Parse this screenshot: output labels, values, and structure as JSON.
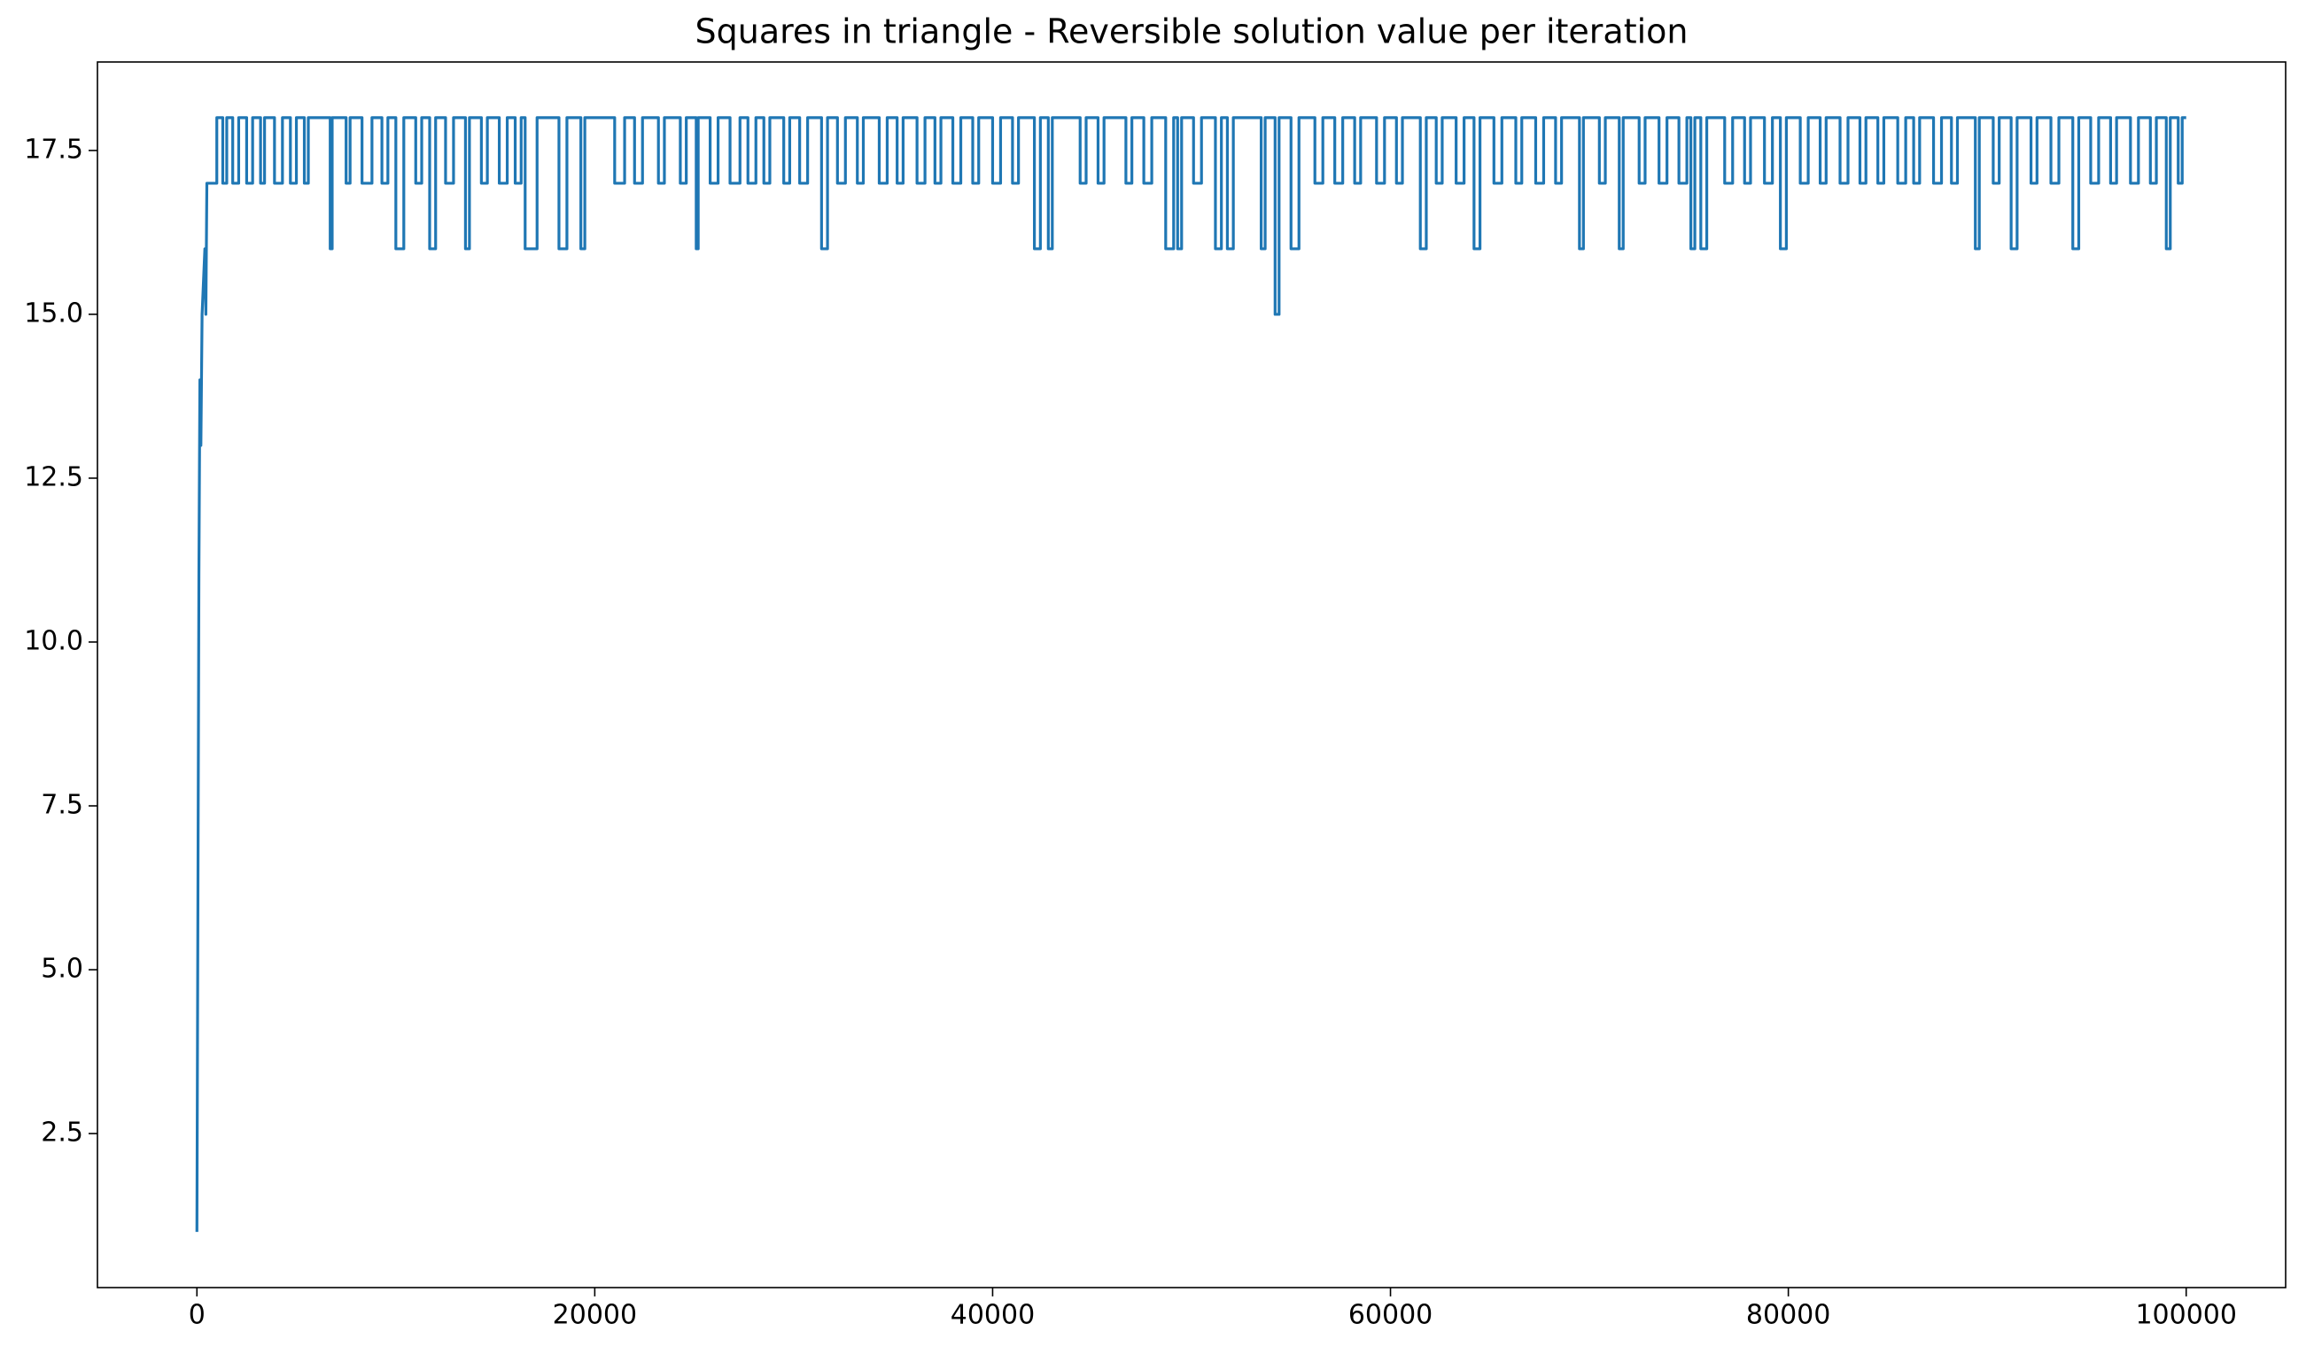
{
  "chart_data": {
    "type": "line",
    "title": "Squares in triangle - Reversible solution value per iteration",
    "color": "#1f77b4",
    "xlim": [
      -5000,
      105000
    ],
    "ylim": [
      0.15,
      18.85
    ],
    "xticks": [
      0,
      20000,
      40000,
      60000,
      80000,
      100000
    ],
    "yticks": [
      2.5,
      {
        "value": 5,
        "label": "5.0"
      },
      7.5,
      {
        "value": 10,
        "label": "10.0"
      },
      12.5,
      {
        "value": 15,
        "label": "15.0"
      },
      17.5
    ],
    "x": [
      0,
      60,
      100,
      150,
      200,
      260,
      400,
      450,
      500,
      1000,
      1000,
      1300,
      1300,
      1500,
      1500,
      1800,
      1800,
      2100,
      2100,
      2500,
      2500,
      2800,
      2800,
      3200,
      3200,
      3400,
      3400,
      3900,
      3900,
      4300,
      4300,
      4700,
      4700,
      5000,
      5000,
      5400,
      5400,
      5600,
      5600,
      6700,
      6700,
      6800,
      6800,
      7500,
      7500,
      7700,
      7700,
      8300,
      8300,
      8800,
      8800,
      9300,
      9300,
      9600,
      9600,
      10000,
      10000,
      10400,
      10400,
      11000,
      11000,
      11300,
      11300,
      11700,
      11700,
      12000,
      12000,
      12500,
      12500,
      12900,
      12900,
      13500,
      13500,
      13700,
      13700,
      14300,
      14300,
      14600,
      14600,
      15200,
      15200,
      15600,
      15600,
      16000,
      16000,
      16300,
      16300,
      16500,
      16500,
      17100,
      17100,
      18200,
      18200,
      18600,
      18600,
      19300,
      19300,
      19500,
      19500,
      21000,
      21000,
      21500,
      21500,
      22000,
      22000,
      22400,
      22400,
      23200,
      23200,
      23500,
      23500,
      24300,
      24300,
      24600,
      24600,
      25100,
      25100,
      25200,
      25200,
      25800,
      25800,
      26200,
      26200,
      26800,
      26800,
      27300,
      27300,
      27700,
      27700,
      28100,
      28100,
      28500,
      28500,
      28800,
      28800,
      29500,
      29500,
      29800,
      29800,
      30300,
      30300,
      30700,
      30700,
      31400,
      31400,
      31700,
      31700,
      32200,
      32200,
      32600,
      32600,
      33200,
      33200,
      33500,
      33500,
      34300,
      34300,
      34700,
      34700,
      35200,
      35200,
      35500,
      35500,
      36200,
      36200,
      36600,
      36600,
      37100,
      37100,
      37400,
      37400,
      38000,
      38000,
      38400,
      38400,
      39000,
      39000,
      39300,
      39300,
      40000,
      40000,
      40400,
      40400,
      41000,
      41000,
      41300,
      41300,
      42100,
      42100,
      42400,
      42400,
      42800,
      42800,
      43000,
      43000,
      44400,
      44400,
      44700,
      44700,
      45300,
      45300,
      45600,
      45600,
      46700,
      46700,
      47000,
      47000,
      47600,
      47600,
      48000,
      48000,
      48700,
      48700,
      49100,
      49100,
      49300,
      49300,
      49500,
      49500,
      50100,
      50100,
      50500,
      50500,
      51200,
      51200,
      51500,
      51500,
      51800,
      51800,
      52100,
      52100,
      53500,
      53500,
      53700,
      53700,
      54200,
      54200,
      54400,
      54400,
      55000,
      55000,
      55400,
      55400,
      56200,
      56200,
      56600,
      56600,
      57200,
      57200,
      57600,
      57600,
      58200,
      58200,
      58500,
      58500,
      59300,
      59300,
      59700,
      59700,
      60300,
      60300,
      60600,
      60600,
      61500,
      61500,
      61800,
      61800,
      62300,
      62300,
      62600,
      62600,
      63300,
      63300,
      63700,
      63700,
      64200,
      64200,
      64500,
      64500,
      65200,
      65200,
      65600,
      65600,
      66300,
      66300,
      66600,
      66600,
      67300,
      67300,
      67700,
      67700,
      68300,
      68300,
      68600,
      68600,
      69500,
      69500,
      69700,
      69700,
      70500,
      70500,
      70800,
      70800,
      71500,
      71500,
      71700,
      71700,
      72500,
      72500,
      72800,
      72800,
      73500,
      73500,
      73900,
      73900,
      74500,
      74500,
      74900,
      74900,
      75100,
      75100,
      75300,
      75300,
      75600,
      75600,
      75900,
      75900,
      76800,
      76800,
      77200,
      77200,
      77800,
      77800,
      78100,
      78100,
      78800,
      78800,
      79200,
      79200,
      79600,
      79600,
      79900,
      79900,
      80600,
      80600,
      81000,
      81000,
      81600,
      81600,
      81900,
      81900,
      82600,
      82600,
      83000,
      83000,
      83600,
      83600,
      83900,
      83900,
      84500,
      84500,
      84800,
      84800,
      85500,
      85500,
      85900,
      85900,
      86300,
      86300,
      86600,
      86600,
      87300,
      87300,
      87700,
      87700,
      88200,
      88200,
      88500,
      88500,
      89400,
      89400,
      89600,
      89600,
      90300,
      90300,
      90600,
      90600,
      91200,
      91200,
      91500,
      91500,
      92200,
      92200,
      92500,
      92500,
      93200,
      93200,
      93600,
      93600,
      94300,
      94300,
      94600,
      94600,
      95200,
      95200,
      95600,
      95600,
      96200,
      96200,
      96500,
      96500,
      97200,
      97200,
      97600,
      97600,
      98200,
      98200,
      98500,
      98500,
      99000,
      99000,
      99200,
      99200,
      99600,
      99600,
      99800,
      99800,
      100000
    ],
    "values": [
      1,
      7,
      11,
      14,
      13,
      15,
      16,
      15,
      17,
      17,
      18,
      18,
      17,
      17,
      18,
      18,
      17,
      17,
      18,
      18,
      17,
      17,
      18,
      18,
      17,
      17,
      18,
      18,
      17,
      17,
      18,
      18,
      17,
      17,
      18,
      18,
      17,
      17,
      18,
      18,
      16,
      16,
      18,
      18,
      17,
      17,
      18,
      18,
      17,
      17,
      18,
      18,
      17,
      17,
      18,
      18,
      16,
      16,
      18,
      18,
      17,
      17,
      18,
      18,
      16,
      16,
      18,
      18,
      17,
      17,
      18,
      18,
      16,
      16,
      18,
      18,
      17,
      17,
      18,
      18,
      17,
      17,
      18,
      18,
      17,
      17,
      18,
      18,
      16,
      16,
      18,
      18,
      16,
      16,
      18,
      18,
      16,
      16,
      18,
      18,
      17,
      17,
      18,
      18,
      17,
      17,
      18,
      18,
      17,
      17,
      18,
      18,
      17,
      17,
      18,
      18,
      16,
      16,
      18,
      18,
      17,
      17,
      18,
      18,
      17,
      17,
      18,
      18,
      17,
      17,
      18,
      18,
      17,
      17,
      18,
      18,
      17,
      17,
      18,
      18,
      17,
      17,
      18,
      18,
      16,
      16,
      18,
      18,
      17,
      17,
      18,
      18,
      17,
      17,
      18,
      18,
      17,
      17,
      18,
      18,
      17,
      17,
      18,
      18,
      17,
      17,
      18,
      18,
      17,
      17,
      18,
      18,
      17,
      17,
      18,
      18,
      17,
      17,
      18,
      18,
      17,
      17,
      18,
      18,
      17,
      17,
      18,
      18,
      16,
      16,
      18,
      18,
      16,
      16,
      18,
      18,
      17,
      17,
      18,
      18,
      17,
      17,
      18,
      18,
      17,
      17,
      18,
      18,
      17,
      17,
      18,
      18,
      16,
      16,
      18,
      18,
      16,
      16,
      18,
      18,
      17,
      17,
      18,
      18,
      16,
      16,
      18,
      18,
      16,
      16,
      18,
      18,
      16,
      16,
      18,
      18,
      15,
      15,
      18,
      18,
      16,
      16,
      18,
      18,
      17,
      17,
      18,
      18,
      17,
      17,
      18,
      18,
      17,
      17,
      18,
      18,
      17,
      17,
      18,
      18,
      17,
      17,
      18,
      18,
      16,
      16,
      18,
      18,
      17,
      17,
      18,
      18,
      17,
      17,
      18,
      18,
      16,
      16,
      18,
      18,
      17,
      17,
      18,
      18,
      17,
      17,
      18,
      18,
      17,
      17,
      18,
      18,
      17,
      17,
      18,
      18,
      16,
      16,
      18,
      18,
      17,
      17,
      18,
      18,
      16,
      16,
      18,
      18,
      17,
      17,
      18,
      18,
      17,
      17,
      18,
      18,
      17,
      17,
      18,
      18,
      16,
      16,
      18,
      18,
      16,
      16,
      18,
      18,
      17,
      17,
      18,
      18,
      17,
      17,
      18,
      18,
      17,
      17,
      18,
      18,
      16,
      16,
      18,
      18,
      17,
      17,
      18,
      18,
      17,
      17,
      18,
      18,
      17,
      17,
      18,
      18,
      17,
      17,
      18,
      18,
      17,
      17,
      18,
      18,
      17,
      17,
      18,
      18,
      17,
      17,
      18,
      18,
      17,
      17,
      18,
      18,
      17,
      17,
      18,
      18,
      16,
      16,
      18,
      18,
      17,
      17,
      18,
      18,
      16,
      16,
      18,
      18,
      17,
      17,
      18,
      18,
      17,
      17,
      18,
      18,
      16,
      16,
      18,
      18,
      17,
      17,
      18,
      18,
      17,
      17,
      18,
      18,
      17,
      17,
      18,
      18,
      17,
      17,
      18,
      18,
      16,
      16,
      18,
      18,
      17,
      17,
      18,
      18
    ]
  }
}
